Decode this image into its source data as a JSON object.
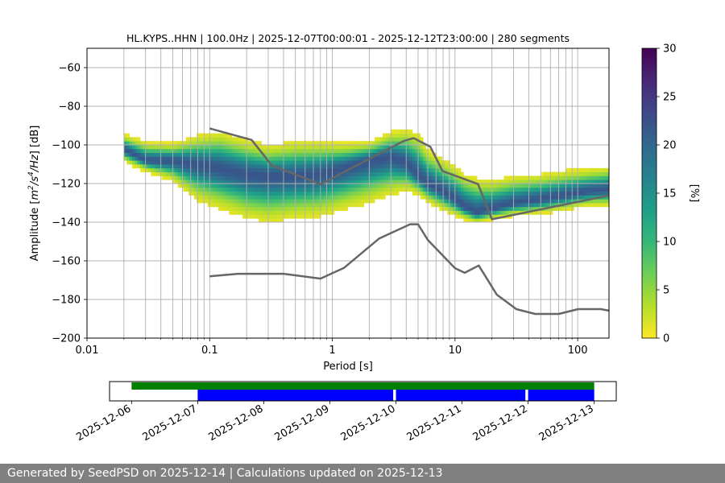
{
  "footer": "Generated by SeedPSD on 2025-12-14 | Calculations updated on 2025-12-13",
  "chart_data": [
    {
      "type": "heatmap",
      "title": "HL.KYPS..HHN | 100.0Hz | 2025-12-07T00:00:01 - 2025-12-12T23:00:00 | 280 segments",
      "xlabel": "Period [s]",
      "ylabel_parts": [
        "Amplitude [",
        "m",
        "2",
        "/",
        "s",
        "4",
        "/",
        "Hz",
        "] [dB]"
      ],
      "x_scale": "log",
      "xlim": [
        0.01,
        180
      ],
      "ylim": [
        -200,
        -50
      ],
      "x_ticks": [
        0.01,
        0.1,
        1,
        10,
        100
      ],
      "x_tick_labels": [
        "0.01",
        "0.1",
        "1",
        "10",
        "100"
      ],
      "y_ticks": [
        -200,
        -180,
        -160,
        -140,
        -120,
        -100,
        -80,
        -60
      ],
      "y_tick_labels": [
        "−200",
        "−180",
        "−160",
        "−140",
        "−120",
        "−100",
        "−80",
        "−60"
      ],
      "grid": "vertical lines at every log decade subdivision",
      "colorbar": {
        "label": "[%]",
        "range": [
          0,
          30
        ],
        "ticks": [
          0,
          5,
          10,
          15,
          20,
          25,
          30
        ],
        "tick_labels": [
          "0",
          "5",
          "10",
          "15",
          "20",
          "25",
          "30"
        ],
        "colormap": [
          "#fde725",
          "#b5de2b",
          "#6ece58",
          "#35b779",
          "#1f9e89",
          "#26828e",
          "#31688e",
          "#3e4989",
          "#482878",
          "#440154"
        ]
      },
      "psd_mode": {
        "period": [
          0.02,
          0.03,
          0.05,
          0.08,
          0.12,
          0.2,
          0.3,
          0.5,
          0.8,
          1.2,
          2,
          3,
          4,
          5,
          6,
          8,
          10,
          12,
          15,
          20,
          30,
          50,
          80,
          120,
          180
        ],
        "db": [
          -102,
          -108,
          -108,
          -110,
          -112,
          -115,
          -116,
          -116,
          -115,
          -112,
          -108,
          -106,
          -109,
          -116,
          -120,
          -124,
          -128,
          -132,
          -135,
          -133,
          -130,
          -128,
          -126,
          -124,
          -123
        ]
      },
      "psd_spread": {
        "upper_db": [
          -95,
          -99,
          -100,
          -96,
          -94,
          -98,
          -101,
          -99,
          -99,
          -100,
          -99,
          -94,
          -93,
          -95,
          -103,
          -108,
          -112,
          -116,
          -118,
          -119,
          -117,
          -116,
          -114,
          -113,
          -112
        ],
        "lower_db": [
          -108,
          -113,
          -118,
          -128,
          -132,
          -137,
          -139,
          -137,
          -136,
          -133,
          -129,
          -125,
          -123,
          -125,
          -129,
          -133,
          -136,
          -138,
          -140,
          -138,
          -136,
          -135,
          -133,
          -131,
          -131
        ]
      },
      "series": [
        {
          "name": "",
          "x": [
            0.1,
            0.22,
            0.32,
            0.8,
            3.8,
            4.6,
            6.3,
            7.9,
            15.4,
            20,
            180
          ],
          "y": [
            -91.5,
            -97.4,
            -110.5,
            -120.4,
            -98.0,
            -96.5,
            -101.0,
            -113.5,
            -120.3,
            -138.5,
            -126.2
          ],
          "color": "#666666"
        },
        {
          "name": "",
          "x": [
            0.1,
            0.17,
            0.4,
            0.8,
            1.24,
            2.4,
            4.3,
            5.0,
            6.0,
            10,
            12,
            15.6,
            21.9,
            31.6,
            45,
            70,
            101,
            154,
            180
          ],
          "y": [
            -168.0,
            -166.7,
            -166.7,
            -169.2,
            -163.7,
            -148.5,
            -141.1,
            -141.1,
            -149.2,
            -163.8,
            -166.2,
            -162.4,
            -177.5,
            -185.0,
            -187.5,
            -187.5,
            -185.0,
            -185.0,
            -185.8
          ],
          "color": "#666666"
        }
      ]
    },
    {
      "type": "timeline",
      "x_tick_labels": [
        "2025-12-06",
        "2025-12-07",
        "2025-12-08",
        "2025-12-09",
        "2025-12-10",
        "2025-12-11",
        "2025-12-12",
        "2025-12-13"
      ],
      "range": [
        "2025-12-05T16:00:00",
        "2025-12-13T08:00:00"
      ],
      "data_available": [
        [
          "2025-12-06T00:00:00",
          "2025-12-13T00:00:00"
        ]
      ],
      "data_available_color": "#008000",
      "psd_computed": [
        [
          "2025-12-07T00:00:00",
          "2025-12-09T23:00:00"
        ],
        [
          "2025-12-10T00:00:00",
          "2025-12-11T23:00:00"
        ],
        [
          "2025-12-12T00:00:00",
          "2025-12-13T00:00:00"
        ]
      ],
      "psd_computed_color": "#0000ff"
    }
  ]
}
